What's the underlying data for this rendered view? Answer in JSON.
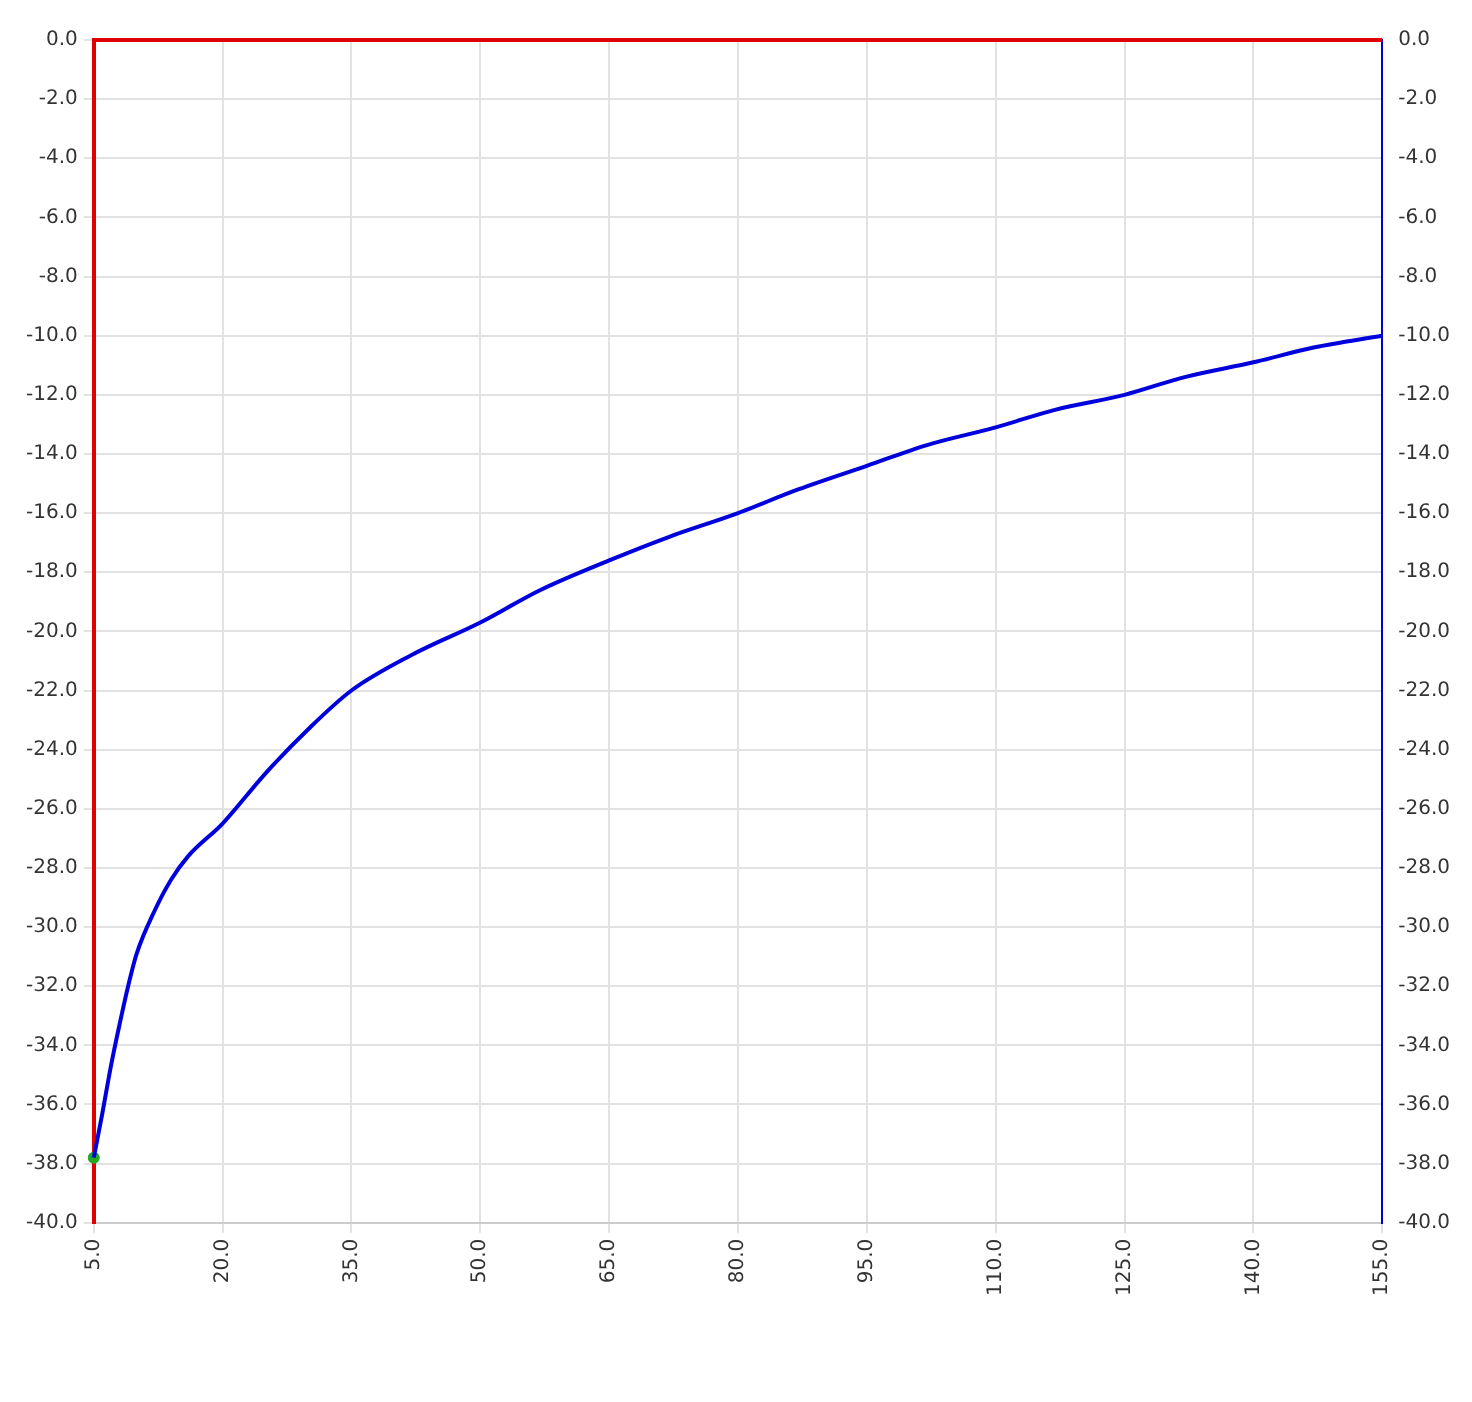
{
  "chart_data": {
    "type": "line",
    "xlim": [
      5,
      155
    ],
    "xticks": [
      {
        "value": 5,
        "label": "5.0"
      },
      {
        "value": 20,
        "label": "20.0"
      },
      {
        "value": 35,
        "label": "35.0"
      },
      {
        "value": 50,
        "label": "50.0"
      },
      {
        "value": 65,
        "label": "65.0"
      },
      {
        "value": 80,
        "label": "80.0"
      },
      {
        "value": 95,
        "label": "95.0"
      },
      {
        "value": 110,
        "label": "110.0"
      },
      {
        "value": 125,
        "label": "125.0"
      },
      {
        "value": 140,
        "label": "140.0"
      },
      {
        "value": 155,
        "label": "155.0"
      }
    ],
    "ylim": [
      -40,
      0
    ],
    "yticks": [
      {
        "value": 0,
        "label": "0.0"
      },
      {
        "value": -2,
        "label": "-2.0"
      },
      {
        "value": -4,
        "label": "-4.0"
      },
      {
        "value": -6,
        "label": "-6.0"
      },
      {
        "value": -8,
        "label": "-8.0"
      },
      {
        "value": -10,
        "label": "-10.0"
      },
      {
        "value": -12,
        "label": "-12.0"
      },
      {
        "value": -14,
        "label": "-14.0"
      },
      {
        "value": -16,
        "label": "-16.0"
      },
      {
        "value": -18,
        "label": "-18.0"
      },
      {
        "value": -20,
        "label": "-20.0"
      },
      {
        "value": -22,
        "label": "-22.0"
      },
      {
        "value": -24,
        "label": "-24.0"
      },
      {
        "value": -26,
        "label": "-26.0"
      },
      {
        "value": -28,
        "label": "-28.0"
      },
      {
        "value": -30,
        "label": "-30.0"
      },
      {
        "value": -32,
        "label": "-32.0"
      },
      {
        "value": -34,
        "label": "-34.0"
      },
      {
        "value": -36,
        "label": "-36.0"
      },
      {
        "value": -38,
        "label": "-38.0"
      },
      {
        "value": -40,
        "label": "-40.0"
      }
    ],
    "y2lim": [
      -40,
      0
    ],
    "y2ticks": [
      {
        "value": 0,
        "label": "0.0"
      },
      {
        "value": -2,
        "label": "-2.0"
      },
      {
        "value": -4,
        "label": "-4.0"
      },
      {
        "value": -6,
        "label": "-6.0"
      },
      {
        "value": -8,
        "label": "-8.0"
      },
      {
        "value": -10,
        "label": "-10.0"
      },
      {
        "value": -12,
        "label": "-12.0"
      },
      {
        "value": -14,
        "label": "-14.0"
      },
      {
        "value": -16,
        "label": "-16.0"
      },
      {
        "value": -18,
        "label": "-18.0"
      },
      {
        "value": -20,
        "label": "-20.0"
      },
      {
        "value": -22,
        "label": "-22.0"
      },
      {
        "value": -24,
        "label": "-24.0"
      },
      {
        "value": -26,
        "label": "-26.0"
      },
      {
        "value": -28,
        "label": "-28.0"
      },
      {
        "value": -30,
        "label": "-30.0"
      },
      {
        "value": -32,
        "label": "-32.0"
      },
      {
        "value": -34,
        "label": "-34.0"
      },
      {
        "value": -36,
        "label": "-36.0"
      },
      {
        "value": -38,
        "label": "-38.0"
      },
      {
        "value": -40,
        "label": "-40.0"
      }
    ],
    "grid": true,
    "legend": false,
    "marker": "none",
    "line_style": "solid",
    "series": [
      {
        "color": "#e00000",
        "x": [
          5,
          155
        ],
        "values": [
          0,
          0
        ]
      },
      {
        "color": "#0000dd",
        "axis": "y2",
        "x": [
          5,
          6,
          7,
          8,
          9,
          10,
          12,
          14,
          16,
          20,
          25,
          30,
          35,
          42,
          50,
          57,
          65,
          72,
          80,
          87,
          95,
          102,
          110,
          117,
          125,
          132,
          140,
          147,
          155
        ],
        "values": [
          -37.8,
          -36.3,
          -34.7,
          -33.3,
          -32.0,
          -30.9,
          -29.5,
          -28.4,
          -27.6,
          -26.5,
          -24.8,
          -23.3,
          -22.0,
          -20.8,
          -19.7,
          -18.6,
          -17.6,
          -16.8,
          -16.0,
          -15.2,
          -14.4,
          -13.7,
          -13.1,
          -12.5,
          -12.0,
          -11.4,
          -10.9,
          -10.4,
          -10.0
        ]
      },
      {
        "type": "scatter",
        "color": "#22aa22",
        "marker": "circle",
        "x": [
          5
        ],
        "values": [
          -37.8
        ]
      }
    ]
  }
}
